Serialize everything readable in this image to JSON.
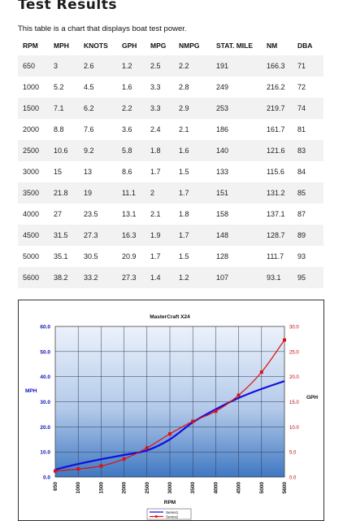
{
  "page": {
    "title": "Test Results",
    "intro": "This table is a chart that displays boat test power."
  },
  "table": {
    "headers": [
      "RPM",
      "MPH",
      "KNOTS",
      "GPH",
      "MPG",
      "NMPG",
      "STAT. MILE",
      "NM",
      "DBA"
    ],
    "rows": [
      [
        "650",
        "3",
        "2.6",
        "1.2",
        "2.5",
        "2.2",
        "191",
        "166.3",
        "71"
      ],
      [
        "1000",
        "5.2",
        "4.5",
        "1.6",
        "3.3",
        "2.8",
        "249",
        "216.2",
        "72"
      ],
      [
        "1500",
        "7.1",
        "6.2",
        "2.2",
        "3.3",
        "2.9",
        "253",
        "219.7",
        "74"
      ],
      [
        "2000",
        "8.8",
        "7.6",
        "3.6",
        "2.4",
        "2.1",
        "186",
        "161.7",
        "81"
      ],
      [
        "2500",
        "10.6",
        "9.2",
        "5.8",
        "1.8",
        "1.6",
        "140",
        "121.6",
        "83"
      ],
      [
        "3000",
        "15",
        "13",
        "8.6",
        "1.7",
        "1.5",
        "133",
        "115.6",
        "84"
      ],
      [
        "3500",
        "21.8",
        "19",
        "11.1",
        "2",
        "1.7",
        "151",
        "131.2",
        "85"
      ],
      [
        "4000",
        "27",
        "23.5",
        "13.1",
        "2.1",
        "1.8",
        "158",
        "137.1",
        "87"
      ],
      [
        "4500",
        "31.5",
        "27.3",
        "16.3",
        "1.9",
        "1.7",
        "148",
        "128.7",
        "89"
      ],
      [
        "5000",
        "35.1",
        "30.5",
        "20.9",
        "1.7",
        "1.5",
        "128",
        "111.7",
        "93"
      ],
      [
        "5600",
        "38.2",
        "33.2",
        "27.3",
        "1.4",
        "1.2",
        "107",
        "93.1",
        "95"
      ]
    ]
  },
  "chart_data": {
    "type": "line",
    "title": "MasterCraft X24",
    "xlabel": "RPM",
    "ylabel": "MPH",
    "y2label": "GPH",
    "categories": [
      "650",
      "1000",
      "1500",
      "2000",
      "2500",
      "3000",
      "3500",
      "4000",
      "4500",
      "5000",
      "5600"
    ],
    "x": [
      650,
      1000,
      1500,
      2000,
      2500,
      3000,
      3500,
      4000,
      4500,
      5000,
      5600
    ],
    "xlim": [
      650,
      5600
    ],
    "ylim": [
      0,
      60
    ],
    "y2lim": [
      0,
      30
    ],
    "yticks": [
      "0.0",
      "10.0",
      "20.0",
      "30.0",
      "40.0",
      "50.0",
      "60.0"
    ],
    "y2ticks": [
      "0.0",
      "5.0",
      "10.0",
      "15.0",
      "20.0",
      "25.0",
      "30.0"
    ],
    "series": [
      {
        "name": "Series1",
        "axis": "left",
        "color": "#1010e0",
        "values": [
          3,
          5.2,
          7.1,
          8.8,
          10.6,
          15,
          21.8,
          27,
          31.5,
          35.1,
          38.2
        ]
      },
      {
        "name": "Series2",
        "axis": "right",
        "color": "#e01010",
        "values": [
          1.2,
          1.6,
          2.2,
          3.6,
          5.8,
          8.6,
          11.1,
          13.1,
          16.3,
          20.9,
          27.3
        ]
      }
    ],
    "grid": true,
    "legend": "bottom",
    "colors": {
      "left_axis": "#1010c0",
      "right_axis": "#c00000",
      "plot_top": "#ecf2fb",
      "plot_bottom": "#3f78c2"
    }
  }
}
